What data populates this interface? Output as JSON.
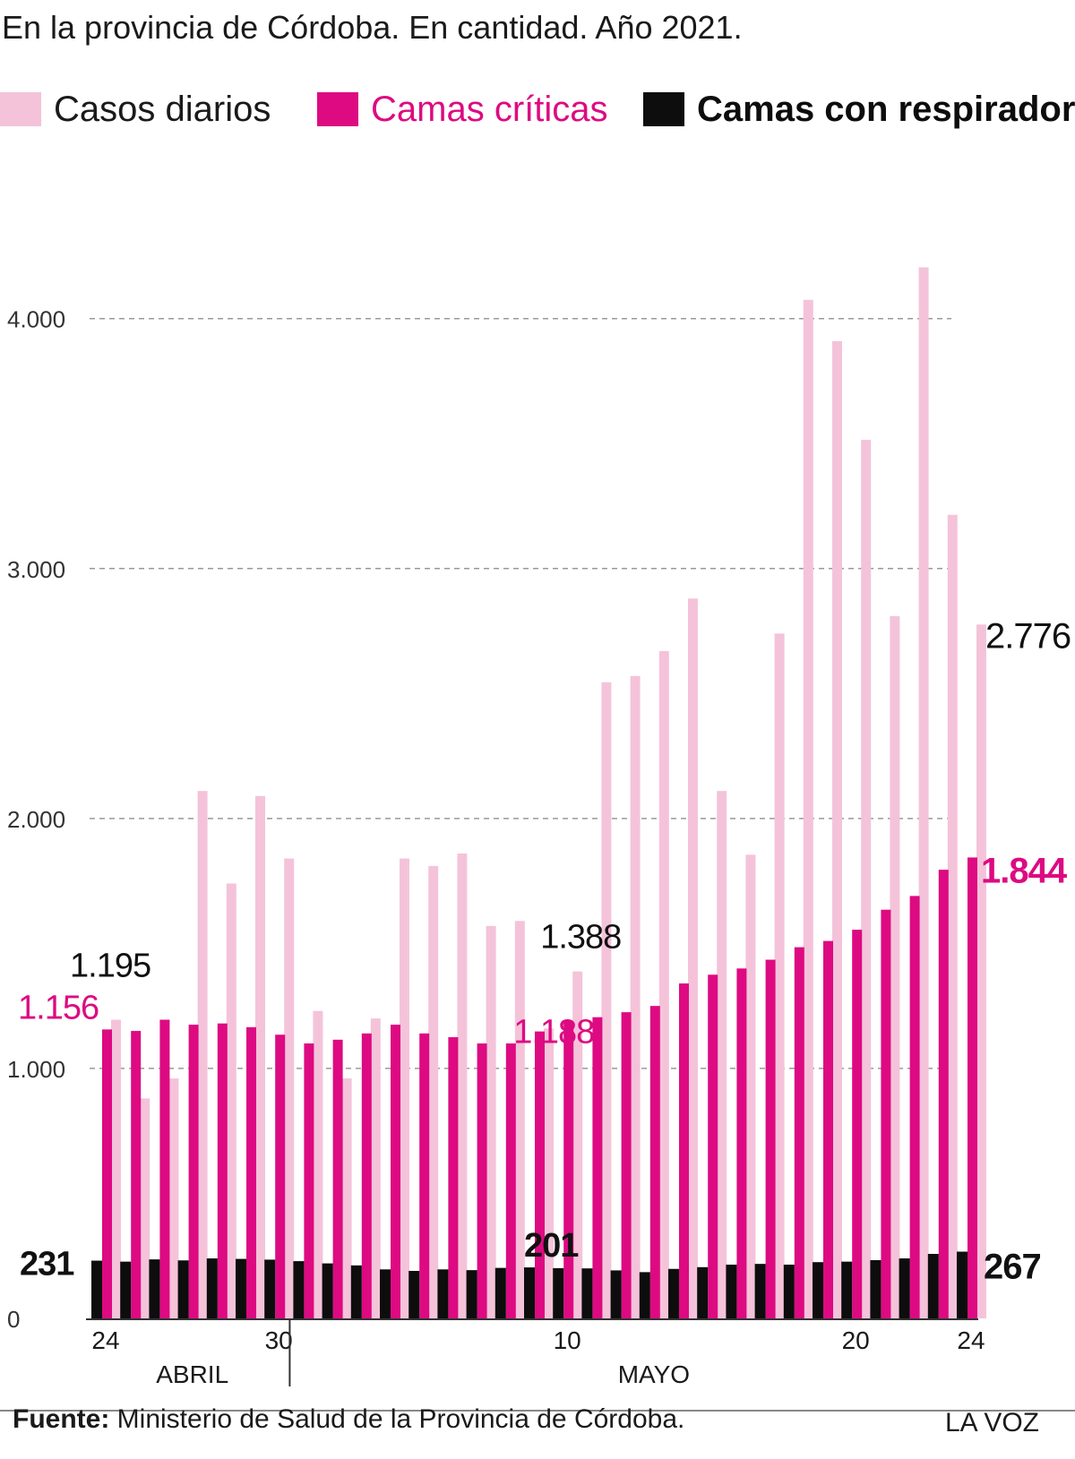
{
  "subtitle": "En la provincia de Córdoba. En cantidad. Año 2021.",
  "legend": [
    {
      "label": "Casos diarios",
      "color": "#f4c3da",
      "bold": false,
      "text_color": "#1a1a1a"
    },
    {
      "label": "Camas críticas",
      "color": "#dd0a82",
      "bold": false,
      "text_color": "#dd0a82"
    },
    {
      "label": "Camas con respirador",
      "color": "#0d0d0d",
      "bold": true,
      "text_color": "#0d0d0d"
    }
  ],
  "chart_data": {
    "type": "bar",
    "ylim": [
      0,
      4300
    ],
    "yticks": [
      {
        "value": 0,
        "label": "0"
      },
      {
        "value": 1000,
        "label": "1.000"
      },
      {
        "value": 2000,
        "label": "2.000"
      },
      {
        "value": 3000,
        "label": "3.000"
      },
      {
        "value": 4000,
        "label": "4.000"
      }
    ],
    "grid_lines": [
      1000,
      2000,
      3000,
      4000
    ],
    "x_ticks": [
      {
        "index": 0,
        "label": "24"
      },
      {
        "index": 6,
        "label": "30"
      },
      {
        "index": 16,
        "label": "10"
      },
      {
        "index": 26,
        "label": "20"
      },
      {
        "index": 30,
        "label": "24"
      }
    ],
    "months": [
      {
        "label": "ABRIL",
        "center": 3.5
      },
      {
        "label": "MAYO",
        "center": 19.5
      }
    ],
    "month_divider_after_index": 6,
    "series": [
      {
        "name": "Casos diarios",
        "color": "#f4c3da",
        "values": [
          1195,
          880,
          960,
          2110,
          1740,
          2090,
          1840,
          1230,
          960,
          1200,
          1840,
          1810,
          1860,
          1570,
          1590,
          1160,
          1388,
          2545,
          2570,
          2670,
          2880,
          2110,
          1855,
          2740,
          4075,
          3910,
          3515,
          2810,
          4205,
          3215,
          2776
        ]
      },
      {
        "name": "Camas críticas",
        "color": "#dd0a82",
        "values": [
          1156,
          1150,
          1195,
          1175,
          1180,
          1165,
          1135,
          1100,
          1115,
          1140,
          1175,
          1140,
          1125,
          1100,
          1100,
          1148,
          1188,
          1205,
          1225,
          1250,
          1340,
          1375,
          1400,
          1435,
          1485,
          1510,
          1555,
          1635,
          1690,
          1795,
          1844
        ]
      },
      {
        "name": "Camas con respirador",
        "color": "#0d0d0d",
        "values": [
          231,
          227,
          236,
          232,
          240,
          238,
          235,
          229,
          220,
          212,
          196,
          190,
          196,
          193,
          202,
          204,
          201,
          200,
          192,
          185,
          198,
          205,
          215,
          218,
          215,
          225,
          227,
          233,
          240,
          258,
          267
        ]
      }
    ],
    "annotations": [
      {
        "text": "1.195",
        "color": "#111111",
        "bold": false
      },
      {
        "text": "1.156",
        "color": "#dd0a82",
        "bold": false
      },
      {
        "text": "231",
        "color": "#111111",
        "bold": true
      },
      {
        "text": "1.388",
        "color": "#111111",
        "bold": false
      },
      {
        "text": "1.188",
        "color": "#dd0a82",
        "bold": false
      },
      {
        "text": "201",
        "color": "#111111",
        "bold": true
      },
      {
        "text": "2.776",
        "color": "#111111",
        "bold": false
      },
      {
        "text": "1.844",
        "color": "#dd0a82",
        "bold": true
      },
      {
        "text": "267",
        "color": "#111111",
        "bold": true
      }
    ]
  },
  "footer": {
    "source_label": "Fuente:",
    "source_text": " Ministerio de Salud de la Provincia de Córdoba.",
    "brand": "LA VOZ"
  }
}
